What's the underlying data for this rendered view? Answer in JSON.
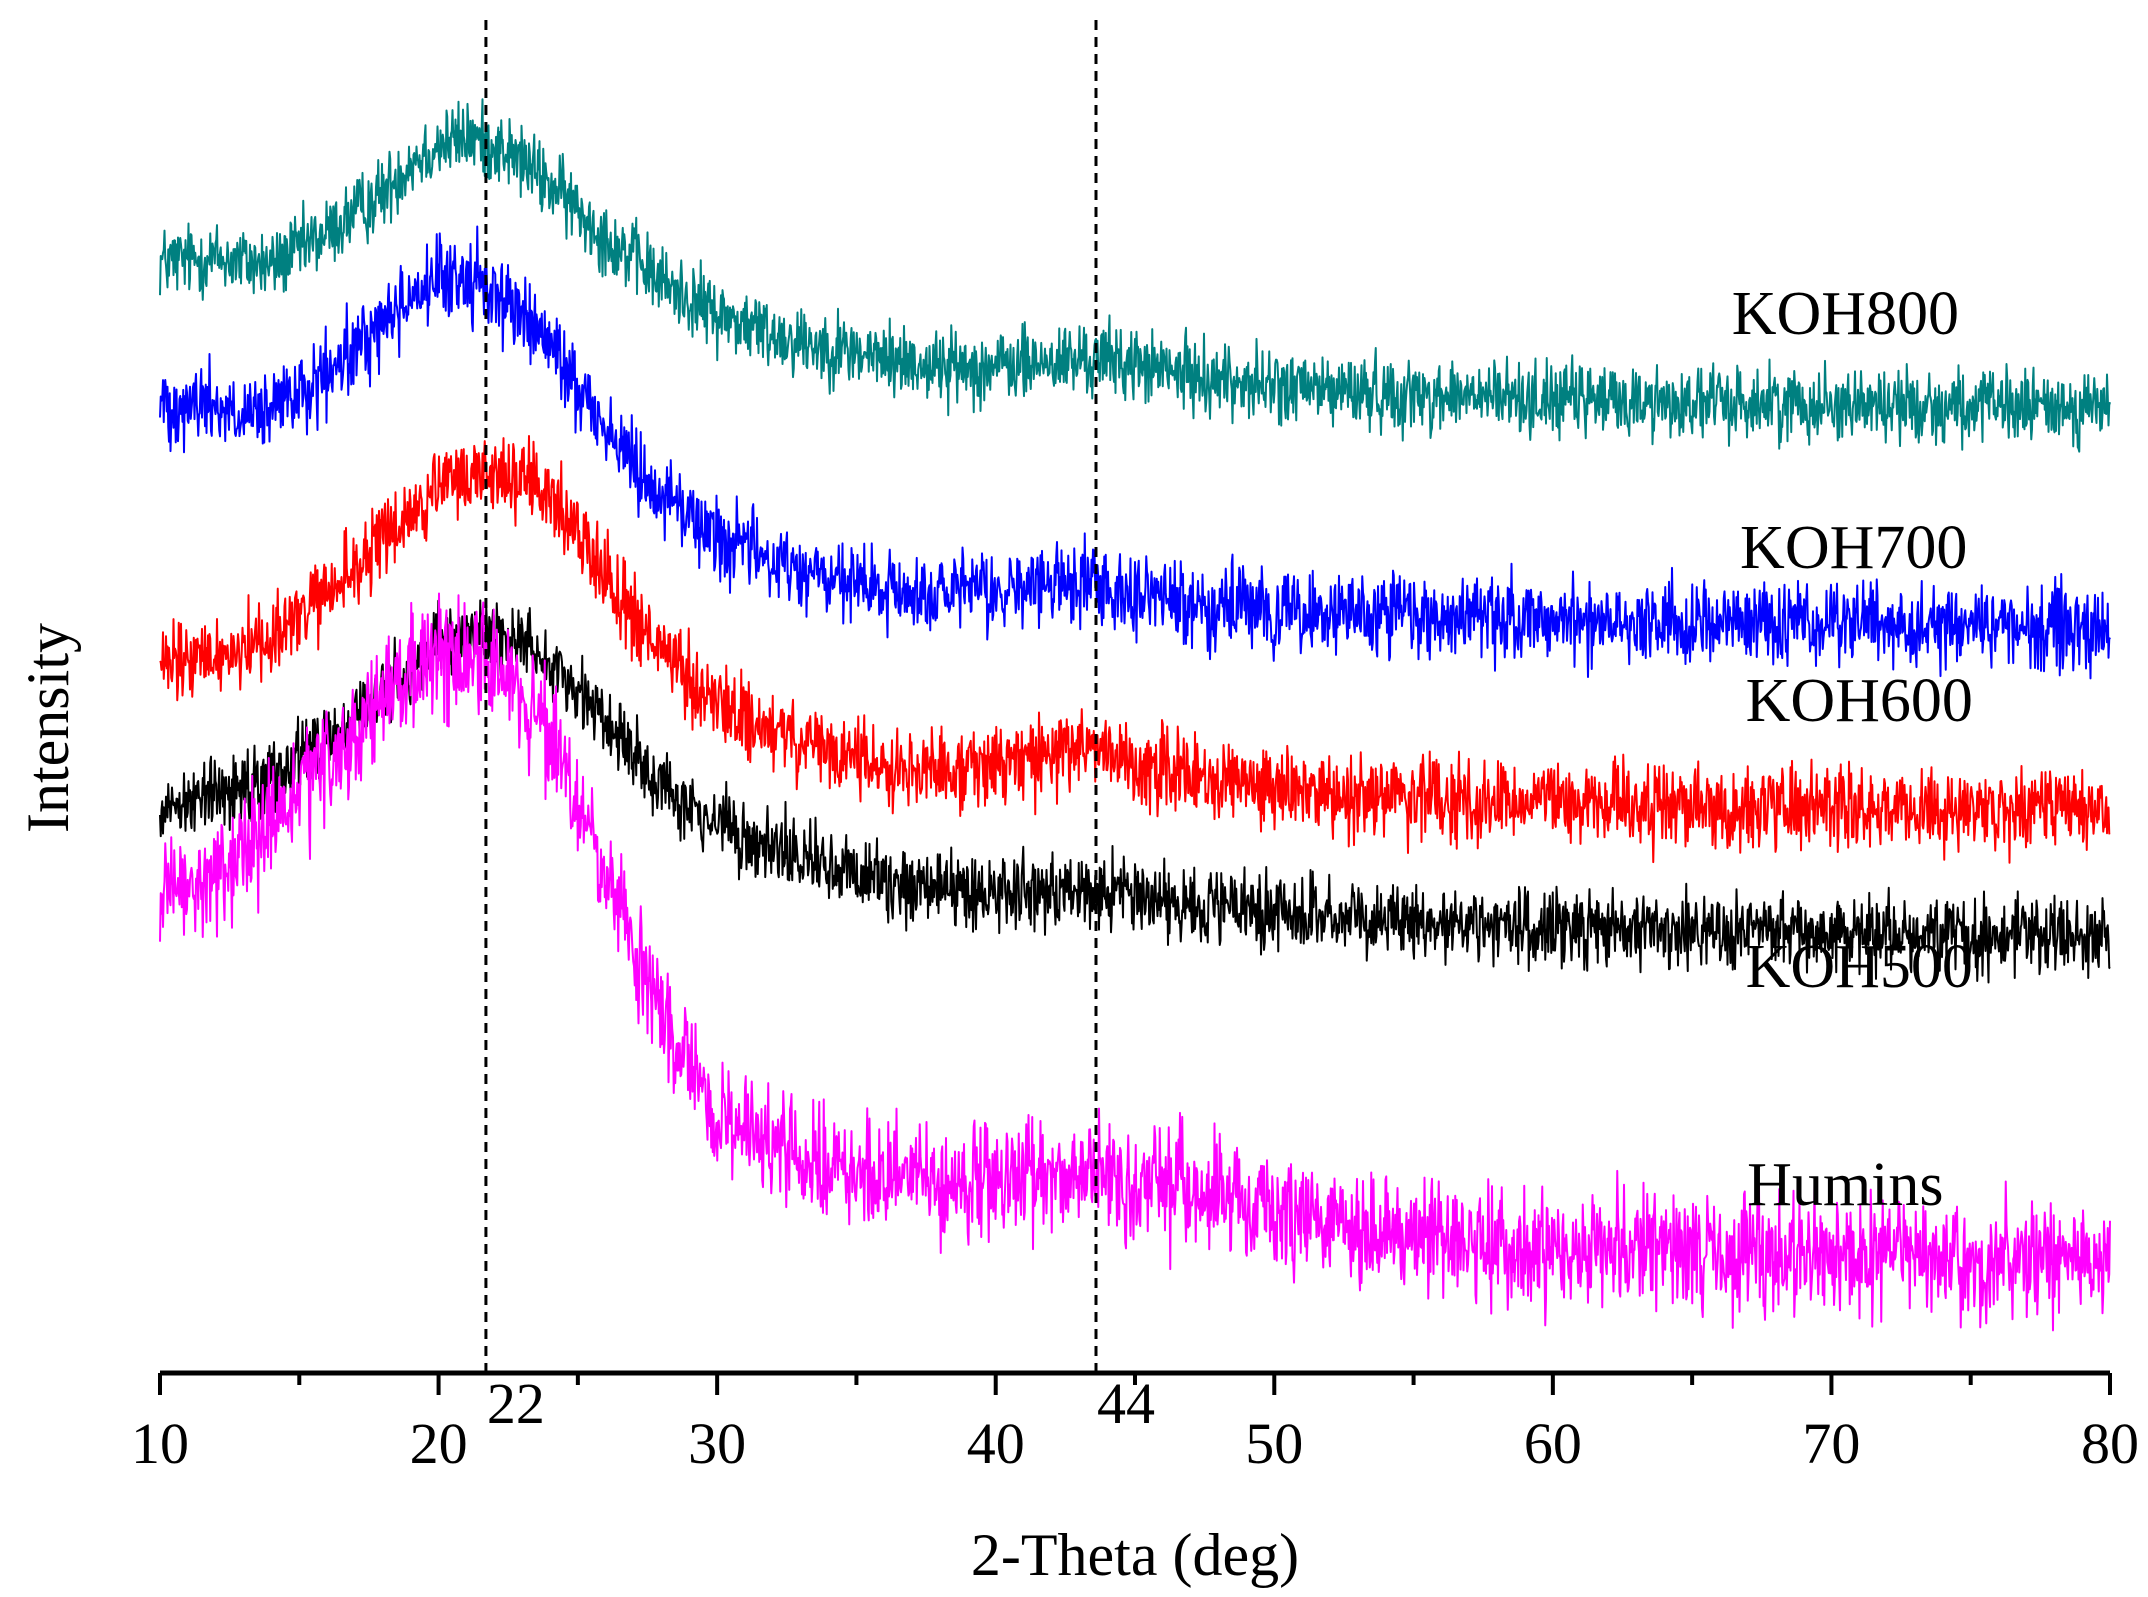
{
  "chart_data": {
    "type": "line",
    "title": "",
    "xlabel": "2-Theta (deg)",
    "ylabel": "Intensity",
    "xlim": [
      10,
      80
    ],
    "xticks": [
      10,
      20,
      30,
      40,
      50,
      60,
      70,
      80
    ],
    "xtick_labels": [
      "10",
      "20",
      "30",
      "40",
      "50",
      "60",
      "70",
      "80"
    ],
    "y_ticks_shown": false,
    "grid": false,
    "reference_lines": [
      {
        "x": 21.7,
        "label": "22"
      },
      {
        "x": 43.6,
        "label": "44"
      }
    ],
    "series": [
      {
        "name": "KOH800",
        "color": "#008080",
        "noise": 0.045,
        "x": [
          10,
          12,
          14,
          16,
          18,
          19,
          20,
          21,
          22,
          23,
          24,
          25,
          26,
          27,
          28,
          29,
          30,
          32,
          34,
          36,
          38,
          40,
          42,
          44,
          46,
          48,
          50,
          55,
          60,
          65,
          70,
          75,
          80
        ],
        "y": [
          1.95,
          1.96,
          1.94,
          2.02,
          2.12,
          2.2,
          2.24,
          2.26,
          2.24,
          2.2,
          2.14,
          2.08,
          2.01,
          1.96,
          1.9,
          1.86,
          1.82,
          1.77,
          1.74,
          1.71,
          1.69,
          1.69,
          1.7,
          1.71,
          1.68,
          1.66,
          1.64,
          1.62,
          1.61,
          1.6,
          1.6,
          1.59,
          1.59
        ]
      },
      {
        "name": "KOH700",
        "color": "#0000FF",
        "noise": 0.05,
        "x": [
          10,
          12,
          13,
          14,
          16,
          18,
          19,
          20,
          21,
          22,
          23,
          24,
          25,
          26,
          27,
          28,
          29,
          30,
          32,
          34,
          36,
          38,
          40,
          42,
          43.5,
          45,
          47,
          50,
          55,
          60,
          65,
          70,
          75,
          80
        ],
        "y": [
          1.6,
          1.6,
          1.55,
          1.58,
          1.66,
          1.8,
          1.87,
          1.9,
          1.91,
          1.88,
          1.82,
          1.74,
          1.64,
          1.54,
          1.45,
          1.38,
          1.32,
          1.27,
          1.21,
          1.16,
          1.13,
          1.12,
          1.13,
          1.15,
          1.16,
          1.13,
          1.1,
          1.08,
          1.07,
          1.06,
          1.06,
          1.05,
          1.05,
          1.04
        ]
      },
      {
        "name": "KOH600",
        "color": "#FF0000",
        "noise": 0.05,
        "x": [
          10,
          12,
          14,
          16,
          18,
          20,
          21,
          22,
          23,
          24,
          25,
          26,
          27,
          28,
          29,
          30,
          32,
          34,
          36,
          38,
          40,
          42,
          43.5,
          45,
          47,
          50,
          55,
          60,
          65,
          70,
          75,
          80
        ],
        "y": [
          0.94,
          0.97,
          1.02,
          1.12,
          1.26,
          1.38,
          1.42,
          1.43,
          1.41,
          1.36,
          1.28,
          1.18,
          1.07,
          0.98,
          0.91,
          0.85,
          0.78,
          0.73,
          0.7,
          0.69,
          0.7,
          0.73,
          0.75,
          0.71,
          0.67,
          0.64,
          0.62,
          0.61,
          0.6,
          0.6,
          0.59,
          0.59
        ]
      },
      {
        "name": "KOH500",
        "color": "#000000",
        "noise": 0.045,
        "x": [
          10,
          12,
          14,
          16,
          18,
          19,
          20,
          21,
          22,
          23,
          24,
          25,
          26,
          27,
          28,
          29,
          30,
          32,
          34,
          36,
          38,
          40,
          42,
          44,
          46,
          48,
          50,
          55,
          60,
          65,
          70,
          75,
          80
        ],
        "y": [
          0.6,
          0.63,
          0.68,
          0.76,
          0.88,
          0.94,
          0.99,
          1.02,
          1.03,
          1.01,
          0.96,
          0.89,
          0.81,
          0.73,
          0.66,
          0.6,
          0.55,
          0.49,
          0.45,
          0.42,
          0.4,
          0.39,
          0.39,
          0.39,
          0.37,
          0.35,
          0.33,
          0.31,
          0.3,
          0.29,
          0.29,
          0.28,
          0.28
        ]
      },
      {
        "name": "Humins",
        "color": "#FF00FF",
        "noise": 0.07,
        "x": [
          10,
          12,
          14,
          16,
          18,
          19,
          20,
          21,
          22,
          23,
          24,
          25,
          26,
          27,
          28,
          29,
          30,
          31,
          32,
          34,
          36,
          38,
          40,
          42,
          44,
          46,
          48,
          50,
          52,
          55,
          60,
          65,
          70,
          75,
          80
        ],
        "y": [
          0.36,
          0.42,
          0.55,
          0.7,
          0.86,
          0.92,
          0.97,
          0.98,
          0.95,
          0.88,
          0.76,
          0.6,
          0.42,
          0.24,
          0.08,
          -0.06,
          -0.16,
          -0.21,
          -0.25,
          -0.3,
          -0.33,
          -0.34,
          -0.33,
          -0.32,
          -0.33,
          -0.35,
          -0.38,
          -0.41,
          -0.44,
          -0.47,
          -0.5,
          -0.51,
          -0.52,
          -0.52,
          -0.53
        ]
      }
    ],
    "series_label_positions_note": "labels placed to the right, above each trace"
  }
}
